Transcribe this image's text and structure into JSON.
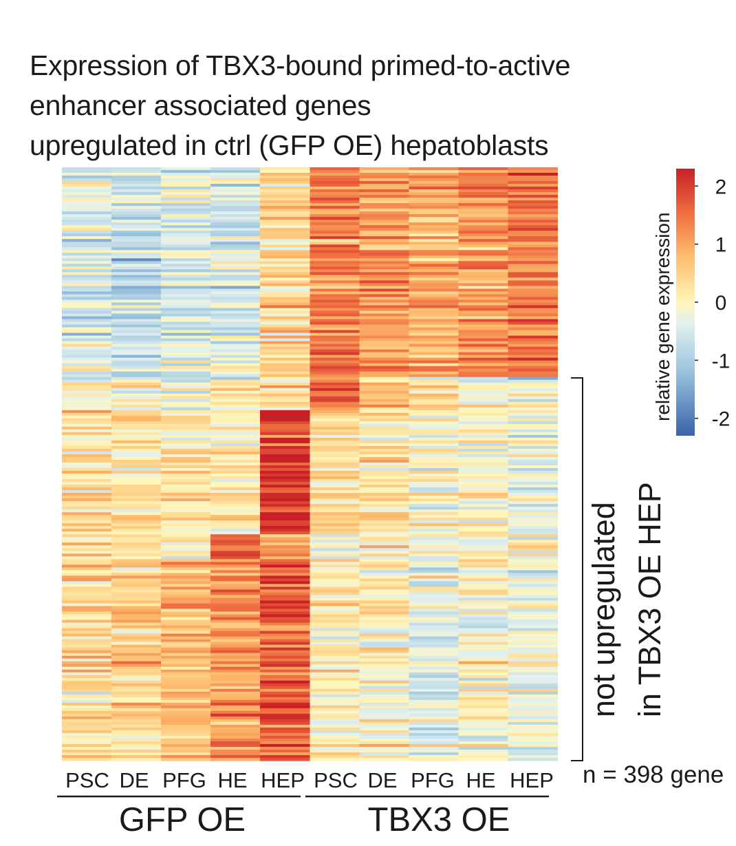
{
  "title": {
    "line1": "Expression of TBX3-bound primed-to-active",
    "line2": "enhancer associated genes",
    "line3": "upregulated in ctrl (GFP OE) hepatoblasts"
  },
  "chart_data": {
    "type": "heatmap",
    "columns": [
      "PSC",
      "DE",
      "PFG",
      "HE",
      "HEP",
      "PSC",
      "DE",
      "PFG",
      "HE",
      "HEP"
    ],
    "groups": [
      {
        "name": "GFP OE",
        "columns": [
          "PSC",
          "DE",
          "PFG",
          "HE",
          "HEP"
        ]
      },
      {
        "name": "TBX3 OE",
        "columns": [
          "PSC",
          "DE",
          "PFG",
          "HE",
          "HEP"
        ]
      }
    ],
    "n_rows_label": "n = 398 gene",
    "bracket_label_line1": "not upregulated",
    "bracket_label_line2": "in TBX3 OE HEP",
    "bracket_row_fraction_start": 0.355,
    "colorbar": {
      "label": "relative gene expression",
      "ticks": [
        "2",
        "1",
        "0",
        "-1",
        "-2"
      ],
      "range": [
        -2.3,
        2.3
      ],
      "colors": [
        "#3b62ab",
        "#9dc7de",
        "#e2f0ef",
        "#fff6b9",
        "#fdb96b",
        "#ee6a3f",
        "#c81f26"
      ]
    },
    "row_blocks": [
      {
        "rows": [
          0,
          0.355
        ],
        "means": [
          -0.55,
          -0.75,
          -0.5,
          -0.55,
          0.35,
          1.35,
          1.1,
          0.9,
          1.15,
          1.4
        ]
      },
      {
        "rows": [
          0.355,
          0.41
        ],
        "means": [
          -0.1,
          -0.1,
          -0.15,
          -0.1,
          0.25,
          1.75,
          0.7,
          0.1,
          -0.1,
          -0.25
        ]
      },
      {
        "rows": [
          0.41,
          0.62
        ],
        "means": [
          0.2,
          0.15,
          0.2,
          0.1,
          2.0,
          0.3,
          0.35,
          -0.15,
          -0.1,
          -0.25
        ]
      },
      {
        "rows": [
          0.62,
          0.66
        ],
        "means": [
          0.2,
          0.25,
          0.2,
          2.0,
          0.9,
          -0.2,
          0.1,
          0.05,
          -0.1,
          0.0
        ]
      },
      {
        "rows": [
          0.66,
          1.0
        ],
        "means": [
          0.35,
          0.5,
          0.7,
          1.1,
          1.65,
          0.05,
          0.0,
          -0.35,
          -0.1,
          -0.25
        ]
      }
    ]
  }
}
